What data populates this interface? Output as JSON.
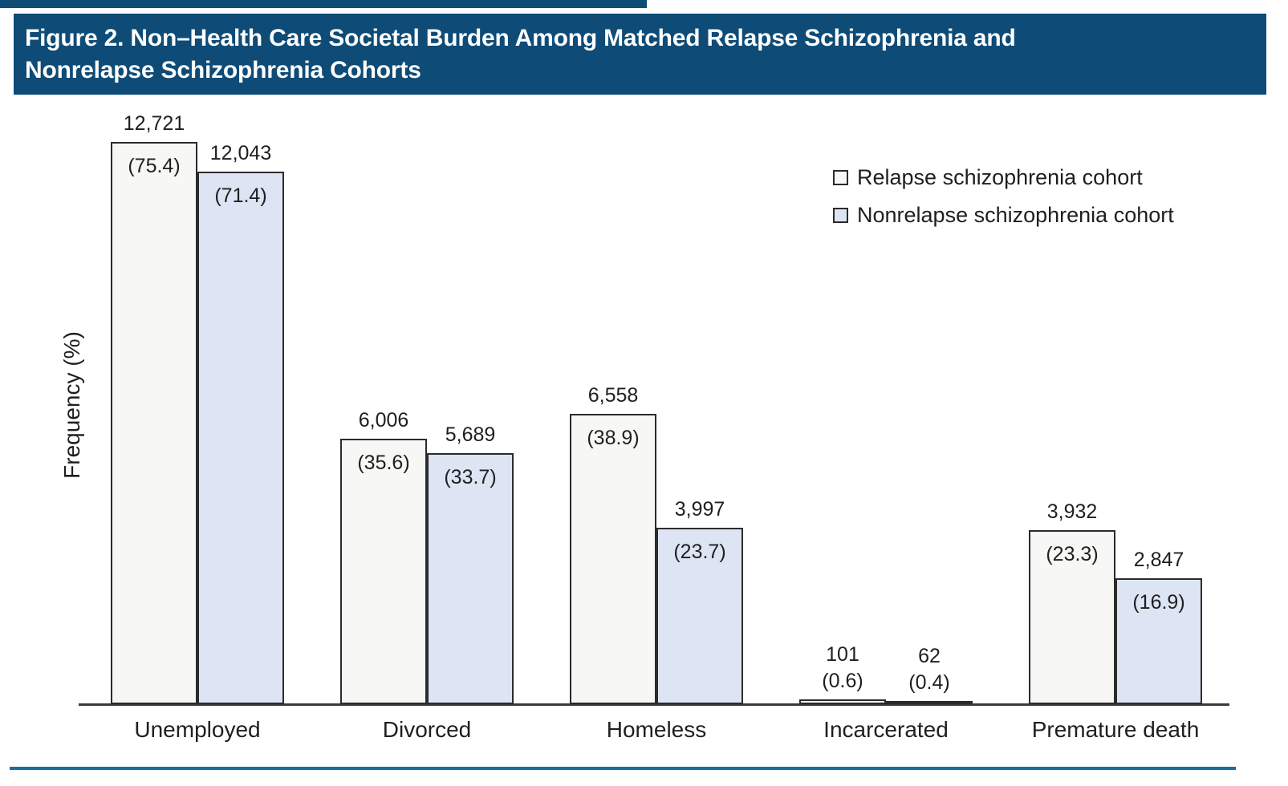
{
  "header": {
    "line1": "Figure 2. Non–Health Care Societal Burden Among Matched Relapse Schizophrenia and",
    "line2": "Nonrelapse Schizophrenia Cohorts",
    "background": "#0e4b76",
    "text_color": "#ffffff"
  },
  "rules": {
    "top_rule_color": "#0e4b76",
    "bottom_rule_color": "#1d6da1"
  },
  "chart_data": {
    "type": "bar",
    "title": "Figure 2. Non–Health Care Societal Burden Among Matched Relapse Schizophrenia and Nonrelapse Schizophrenia Cohorts",
    "xlabel": "",
    "ylabel": "Frequency (%)",
    "categories": [
      "Unemployed",
      "Divorced",
      "Homeless",
      "Incarcerated",
      "Premature death"
    ],
    "series": [
      {
        "name": "Relapse schizophrenia cohort",
        "fill": "#f7f8f5",
        "counts": [
          "12,721",
          "6,006",
          "6,558",
          "101",
          "3,932"
        ],
        "percents": [
          75.4,
          35.6,
          38.9,
          0.6,
          23.3
        ],
        "percent_labels": [
          "(75.4)",
          "(35.6)",
          "(38.9)",
          "(0.6)",
          "(23.3)"
        ]
      },
      {
        "name": "Nonrelapse schizophrenia cohort",
        "fill": "#dde4f3",
        "counts": [
          "12,043",
          "5,689",
          "3,997",
          "62",
          "2,847"
        ],
        "percents": [
          71.4,
          33.7,
          23.7,
          0.4,
          16.9
        ],
        "percent_labels": [
          "(71.4)",
          "(33.7)",
          "(23.7)",
          "(0.4)",
          "(16.9)"
        ]
      }
    ],
    "ylim": [
      0,
      80
    ],
    "grid": false,
    "y_ticks_visible": false,
    "legend_position": "upper-right",
    "bar_border_color": "#2b2b2b",
    "axis_line_color": "#3a3a3a"
  }
}
